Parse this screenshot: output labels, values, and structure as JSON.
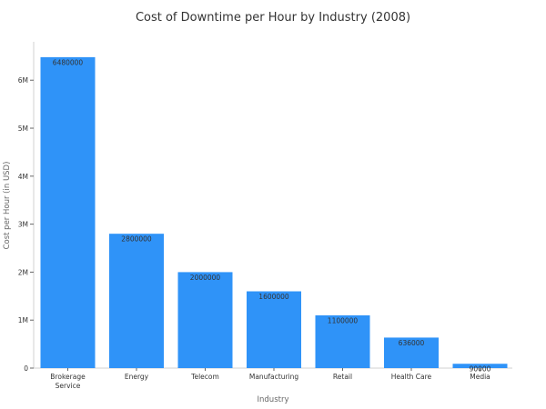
{
  "chart_data": {
    "type": "bar",
    "title": "Cost of Downtime per Hour by Industry (2008)",
    "xlabel": "Industry",
    "ylabel": "Cost per Hour (in USD)",
    "categories": [
      [
        "Brokerage",
        "Service"
      ],
      [
        "Energy"
      ],
      [
        "Telecom"
      ],
      [
        "Manufacturing"
      ],
      [
        "Retail"
      ],
      [
        "Health Care"
      ],
      [
        "Media"
      ]
    ],
    "values": [
      6480000,
      2800000,
      2000000,
      1600000,
      1100000,
      636000,
      90000
    ],
    "data_labels": [
      "6480000",
      "2800000",
      "2000000",
      "1600000",
      "1100000",
      "636000",
      "90000"
    ],
    "y_ticks": [
      0,
      1000000,
      2000000,
      3000000,
      4000000,
      5000000,
      6000000
    ],
    "y_tick_labels": [
      "0",
      "1M",
      "2M",
      "3M",
      "4M",
      "5M",
      "6M"
    ],
    "ylim": [
      0,
      6800000
    ],
    "bar_color": "#2f93f8",
    "grid": false,
    "legend": "none"
  }
}
